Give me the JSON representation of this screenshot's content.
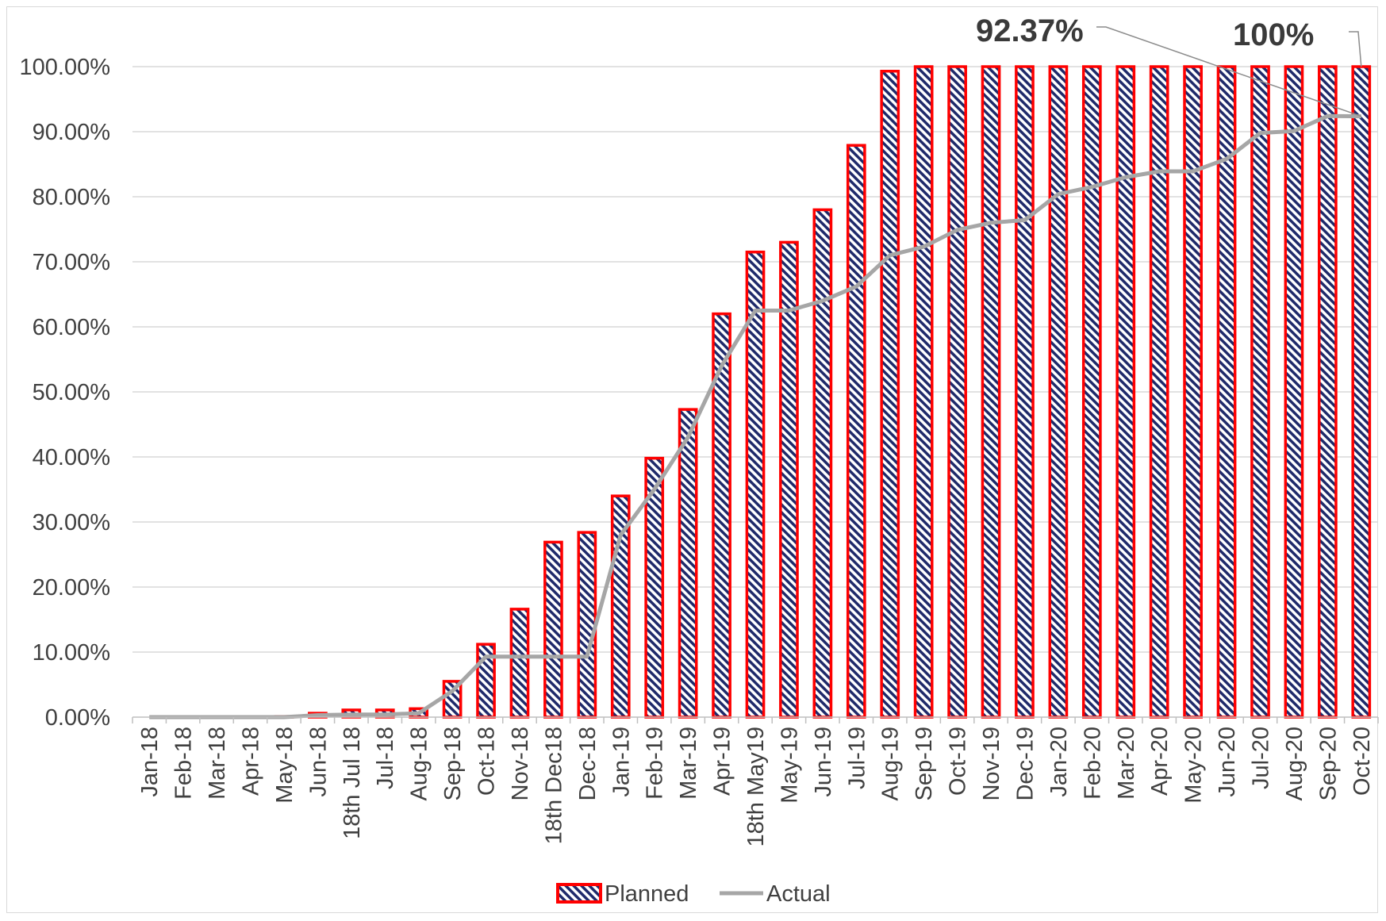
{
  "chart_data": {
    "type": "bar",
    "title": "",
    "xlabel": "",
    "ylabel": "",
    "ylim": [
      0,
      100
    ],
    "ytick_step": 10,
    "ytick_format": "percent_2dp",
    "grid": "horizontal",
    "legend_position": "bottom",
    "categories": [
      "Jan-18",
      "Feb-18",
      "Mar-18",
      "Apr-18",
      "May-18",
      "Jun-18",
      "18th Jul 18",
      "Jul-18",
      "Aug-18",
      "Sep-18",
      "Oct-18",
      "Nov-18",
      "18th Dec18",
      "Dec-18",
      "Jan-19",
      "Feb-19",
      "Mar-19",
      "Apr-19",
      "18th May19",
      "May-19",
      "Jun-19",
      "Jul-19",
      "Aug-19",
      "Sep-19",
      "Oct-19",
      "Nov-19",
      "Dec-19",
      "Jan-20",
      "Feb-20",
      "Mar-20",
      "Apr-20",
      "May-20",
      "Jun-20",
      "Jul-20",
      "Aug-20",
      "Sep-20",
      "Oct-20"
    ],
    "series": [
      {
        "name": "Planned",
        "kind": "bar",
        "fill_color": "#1f2a6b",
        "stripe_color": "#ffffff",
        "border_color": "#ff0000",
        "values": [
          0,
          0,
          0,
          0,
          0.1,
          0.6,
          1.1,
          1.1,
          1.3,
          5.5,
          11.2,
          16.6,
          26.9,
          28.4,
          34.0,
          39.8,
          47.3,
          62.0,
          71.5,
          73.0,
          78.0,
          87.9,
          99.3,
          100,
          100,
          100,
          100,
          100,
          100,
          100,
          100,
          100,
          100,
          100,
          100,
          100,
          100
        ]
      },
      {
        "name": "Actual",
        "kind": "line",
        "color": "#a6a6a6",
        "values": [
          0,
          0,
          0,
          0,
          0,
          0.3,
          0.4,
          0.4,
          0.6,
          4.0,
          9.3,
          9.3,
          9.3,
          9.3,
          28.0,
          35.0,
          43.0,
          54.0,
          62.5,
          62.5,
          64.0,
          66.2,
          71.0,
          72.3,
          74.9,
          76.0,
          76.4,
          80.4,
          81.5,
          83.0,
          83.9,
          83.9,
          85.8,
          89.8,
          90.1,
          92.4,
          92.37
        ]
      }
    ],
    "annotations": [
      {
        "text": "92.37%",
        "points_to": "Actual, Oct-20"
      },
      {
        "text": "100%",
        "points_to": "Planned, Oct-20"
      }
    ]
  }
}
